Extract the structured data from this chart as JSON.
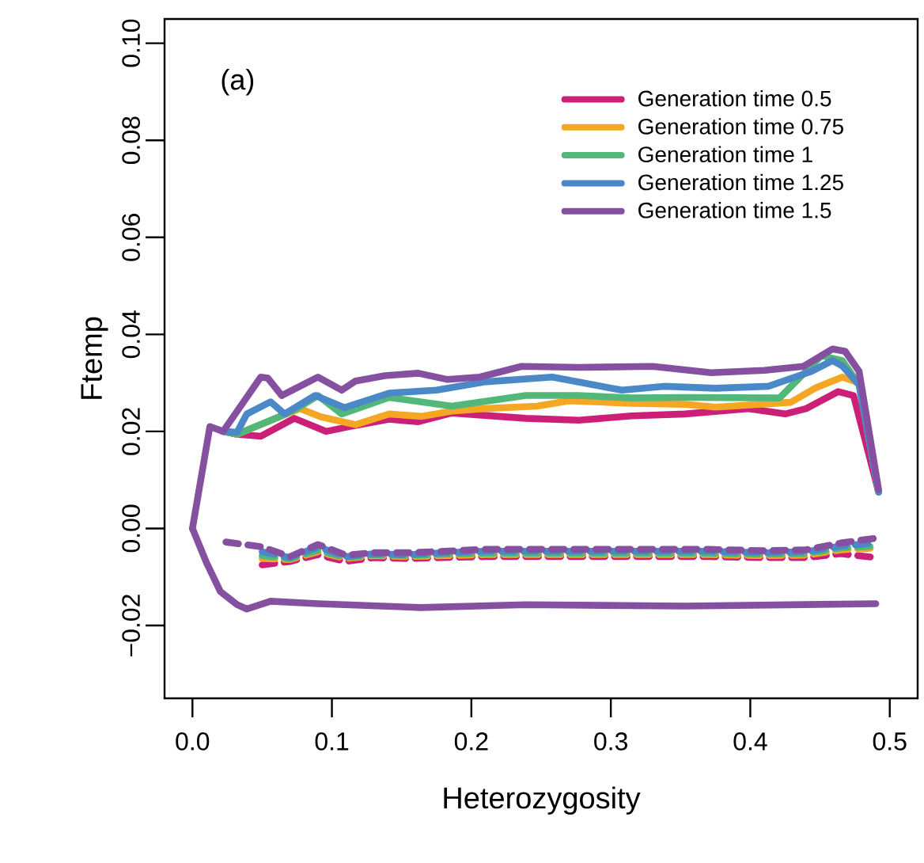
{
  "chart_data": {
    "type": "line",
    "xlabel": "Heterozygosity",
    "ylabel": "Ftemp",
    "annotations": [
      "(a)"
    ],
    "xlim": [
      -0.02,
      0.52
    ],
    "ylim": [
      -0.035,
      0.105
    ],
    "xticks": [
      {
        "value": 0,
        "label": "0.0"
      },
      {
        "value": 0.1,
        "label": "0.1"
      },
      {
        "value": 0.2,
        "label": "0.2"
      },
      {
        "value": 0.3,
        "label": "0.3"
      },
      {
        "value": 0.4,
        "label": "0.4"
      },
      {
        "value": 0.5,
        "label": "0.5"
      }
    ],
    "yticks": [
      {
        "value": -0.02,
        "label": "−0.02"
      },
      {
        "value": 0,
        "label": "0.00"
      },
      {
        "value": 0.02,
        "label": "0.02"
      },
      {
        "value": 0.04,
        "label": "0.04"
      },
      {
        "value": 0.06,
        "label": "0.06"
      },
      {
        "value": 0.08,
        "label": "0.08"
      },
      {
        "value": 0.1,
        "label": "0.10"
      }
    ],
    "grid": false,
    "legend": "top right",
    "series": [
      {
        "name": "Generation time 0.5",
        "color": "#cc1f78",
        "line_style": "solid",
        "x": [
          0.022,
          0.032,
          0.049,
          0.073,
          0.096,
          0.111,
          0.141,
          0.162,
          0.186,
          0.239,
          0.277,
          0.315,
          0.353,
          0.398,
          0.425,
          0.44,
          0.463,
          0.474,
          0.492
        ],
        "values": [
          0.02,
          0.0194,
          0.019,
          0.0227,
          0.02,
          0.0209,
          0.0225,
          0.022,
          0.0238,
          0.0227,
          0.0223,
          0.0232,
          0.0236,
          0.0247,
          0.0236,
          0.0247,
          0.0282,
          0.0274,
          0.0075
        ]
      },
      {
        "name": "Generation time 0.75",
        "color": "#f5a623",
        "line_style": "solid",
        "x": [
          0.022,
          0.032,
          0.077,
          0.092,
          0.117,
          0.141,
          0.164,
          0.186,
          0.209,
          0.247,
          0.27,
          0.315,
          0.353,
          0.375,
          0.429,
          0.447,
          0.466,
          0.478,
          0.492
        ],
        "values": [
          0.02,
          0.0194,
          0.0247,
          0.023,
          0.0214,
          0.0236,
          0.0231,
          0.0242,
          0.0247,
          0.0252,
          0.0263,
          0.0258,
          0.0256,
          0.025,
          0.026,
          0.029,
          0.0312,
          0.03,
          0.0075
        ]
      },
      {
        "name": "Generation time 1",
        "color": "#52b87a",
        "line_style": "solid",
        "x": [
          0.022,
          0.032,
          0.062,
          0.075,
          0.09,
          0.107,
          0.141,
          0.186,
          0.239,
          0.277,
          0.315,
          0.353,
          0.421,
          0.451,
          0.466,
          0.478,
          0.492
        ],
        "values": [
          0.02,
          0.0194,
          0.023,
          0.0247,
          0.0274,
          0.0236,
          0.027,
          0.0252,
          0.0274,
          0.0274,
          0.0269,
          0.027,
          0.0269,
          0.0356,
          0.0346,
          0.0296,
          0.0075
        ]
      },
      {
        "name": "Generation time 1.25",
        "color": "#4a88c8",
        "line_style": "solid",
        "x": [
          0.022,
          0.032,
          0.039,
          0.056,
          0.066,
          0.088,
          0.109,
          0.141,
          0.175,
          0.209,
          0.258,
          0.308,
          0.338,
          0.375,
          0.413,
          0.444,
          0.459,
          0.466,
          0.478,
          0.492
        ],
        "values": [
          0.02,
          0.0198,
          0.0236,
          0.0261,
          0.0236,
          0.0274,
          0.0249,
          0.0279,
          0.0285,
          0.0302,
          0.0312,
          0.0285,
          0.0293,
          0.0289,
          0.0293,
          0.0324,
          0.0346,
          0.0335,
          0.0296,
          0.0075
        ]
      },
      {
        "name": "Generation time 1.5",
        "color": "#8650a0",
        "line_style": "solid",
        "x": [
          0,
          0.0125,
          0.022,
          0.049,
          0.054,
          0.064,
          0.079,
          0.09,
          0.107,
          0.117,
          0.138,
          0.162,
          0.183,
          0.206,
          0.236,
          0.277,
          0.33,
          0.372,
          0.41,
          0.438,
          0.459,
          0.468,
          0.478,
          0.492
        ],
        "values": [
          0,
          0.021,
          0.02,
          0.0312,
          0.031,
          0.0274,
          0.0296,
          0.0312,
          0.0285,
          0.0304,
          0.0315,
          0.032,
          0.0307,
          0.0312,
          0.0334,
          0.0332,
          0.0334,
          0.0321,
          0.0326,
          0.0334,
          0.037,
          0.0365,
          0.0324,
          0.008
        ]
      },
      {
        "color": "#cc1f78",
        "line_style": "dashed",
        "x": [
          0.05,
          0.07,
          0.09,
          0.11,
          0.13,
          0.155,
          0.18,
          0.21,
          0.24,
          0.28,
          0.33,
          0.37,
          0.41,
          0.44,
          0.465,
          0.49
        ],
        "values": [
          -0.0075,
          -0.0068,
          -0.0054,
          -0.0068,
          -0.006,
          -0.0062,
          -0.006,
          -0.0058,
          -0.0058,
          -0.0058,
          -0.0058,
          -0.0058,
          -0.006,
          -0.006,
          -0.0052,
          -0.006
        ]
      },
      {
        "color": "#f5a623",
        "line_style": "dashed",
        "x": [
          0.05,
          0.07,
          0.09,
          0.11,
          0.13,
          0.155,
          0.18,
          0.21,
          0.24,
          0.28,
          0.33,
          0.37,
          0.41,
          0.44,
          0.465,
          0.49
        ],
        "values": [
          -0.0062,
          -0.0064,
          -0.0048,
          -0.0062,
          -0.0056,
          -0.0058,
          -0.0056,
          -0.0054,
          -0.0054,
          -0.0054,
          -0.0054,
          -0.0054,
          -0.0056,
          -0.0055,
          -0.0044,
          -0.004
        ]
      },
      {
        "color": "#52b87a",
        "line_style": "dashed",
        "x": [
          0.05,
          0.07,
          0.09,
          0.11,
          0.13,
          0.155,
          0.18,
          0.21,
          0.24,
          0.28,
          0.33,
          0.37,
          0.41,
          0.44,
          0.465,
          0.49
        ],
        "values": [
          -0.0056,
          -0.0062,
          -0.0045,
          -0.006,
          -0.0054,
          -0.0056,
          -0.0053,
          -0.0051,
          -0.0051,
          -0.0051,
          -0.0051,
          -0.0051,
          -0.0053,
          -0.0052,
          -0.004,
          -0.0036
        ]
      },
      {
        "color": "#4a88c8",
        "line_style": "dashed",
        "x": [
          0.05,
          0.07,
          0.09,
          0.11,
          0.13,
          0.155,
          0.18,
          0.21,
          0.24,
          0.28,
          0.33,
          0.37,
          0.41,
          0.44,
          0.465,
          0.49
        ],
        "values": [
          -0.0048,
          -0.006,
          -0.0038,
          -0.0058,
          -0.0052,
          -0.0054,
          -0.005,
          -0.0047,
          -0.0047,
          -0.0047,
          -0.0047,
          -0.0047,
          -0.005,
          -0.0048,
          -0.0036,
          -0.003
        ]
      },
      {
        "color": "#8650a0",
        "line_style": "dashed",
        "x": [
          0.024,
          0.05,
          0.07,
          0.09,
          0.11,
          0.13,
          0.155,
          0.18,
          0.21,
          0.24,
          0.28,
          0.33,
          0.37,
          0.41,
          0.44,
          0.465,
          0.49
        ],
        "values": [
          -0.0028,
          -0.0038,
          -0.0058,
          -0.0033,
          -0.0055,
          -0.005,
          -0.005,
          -0.0047,
          -0.0043,
          -0.0043,
          -0.0043,
          -0.0043,
          -0.0043,
          -0.0046,
          -0.0044,
          -0.003,
          -0.002
        ]
      },
      {
        "color": "#8650a0",
        "line_style": "solid",
        "x": [
          0,
          0.01,
          0.02,
          0.032,
          0.039,
          0.056,
          0.09,
          0.164,
          0.239,
          0.353,
          0.49
        ],
        "values": [
          0,
          -0.007,
          -0.013,
          -0.0157,
          -0.0166,
          -0.015,
          -0.0155,
          -0.0163,
          -0.0157,
          -0.016,
          -0.0155
        ]
      }
    ]
  }
}
